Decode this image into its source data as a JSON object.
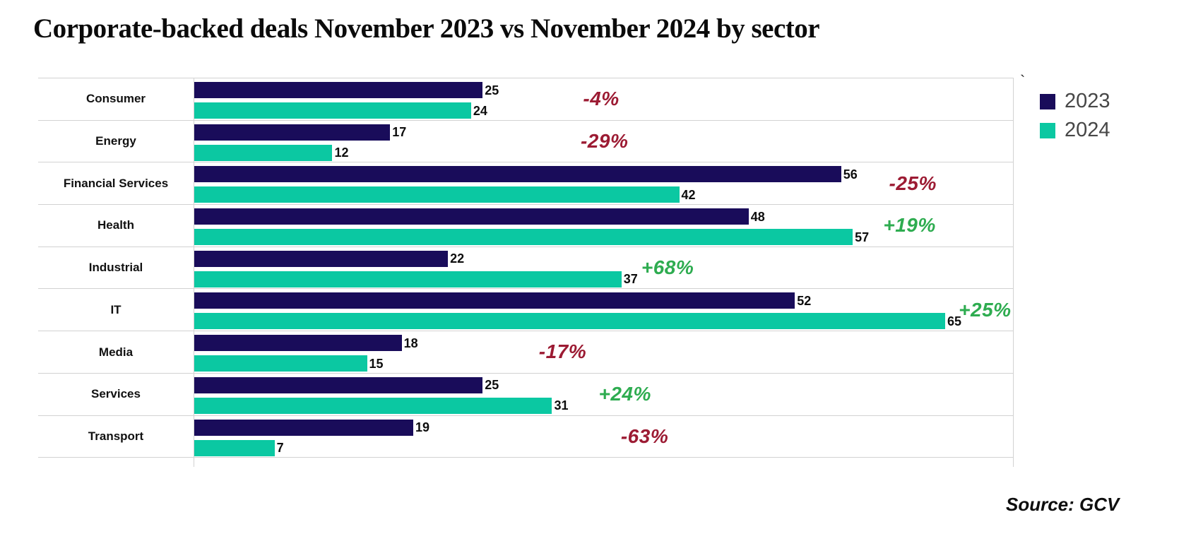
{
  "title": "Corporate-backed deals November 2023 vs November 2024 by sector",
  "stray_mark": "`",
  "source_note": "Source: GCV",
  "colors": {
    "bar_2023": "#190C5A",
    "bar_2024": "#0BC8A2",
    "negative": "#9C1B33",
    "positive": "#2EAC50",
    "gridline": "#D2D2D2",
    "legend_text": "#474747"
  },
  "legend": {
    "items": [
      {
        "label": "2023",
        "swatch": "bar_2023"
      },
      {
        "label": "2024",
        "swatch": "bar_2024"
      }
    ]
  },
  "chart_data": {
    "type": "bar",
    "orientation": "horizontal",
    "title": "Corporate-backed deals November 2023 vs November 2024 by sector",
    "categories": [
      "Consumer",
      "Energy",
      "Financial Services",
      "Health",
      "Industrial",
      "IT",
      "Media",
      "Services",
      "Transport"
    ],
    "series": [
      {
        "name": "2023",
        "values": [
          25,
          17,
          56,
          48,
          22,
          52,
          18,
          25,
          19
        ]
      },
      {
        "name": "2024",
        "values": [
          24,
          12,
          42,
          57,
          37,
          65,
          15,
          31,
          7
        ]
      }
    ],
    "change_labels": [
      {
        "text": "-4%",
        "direction": "down",
        "center_pct": 49.7
      },
      {
        "text": "-29%",
        "direction": "down",
        "center_pct": 50.1
      },
      {
        "text": "-25%",
        "direction": "down",
        "center_pct": 87.7
      },
      {
        "text": "+19%",
        "direction": "up",
        "center_pct": 87.3
      },
      {
        "text": "+68%",
        "direction": "up",
        "center_pct": 57.8
      },
      {
        "text": "+25%",
        "direction": "up",
        "center_pct": 96.5
      },
      {
        "text": "-17%",
        "direction": "down",
        "center_pct": 45.0
      },
      {
        "text": "+24%",
        "direction": "up",
        "center_pct": 52.6
      },
      {
        "text": "-63%",
        "direction": "down",
        "center_pct": 55.0
      }
    ],
    "value_axis_max": 65,
    "bar_width_pct_per_unit": 1.41,
    "grid": "horizontal-row-separators",
    "legend_position": "top-right-outside",
    "source": "GCV"
  }
}
